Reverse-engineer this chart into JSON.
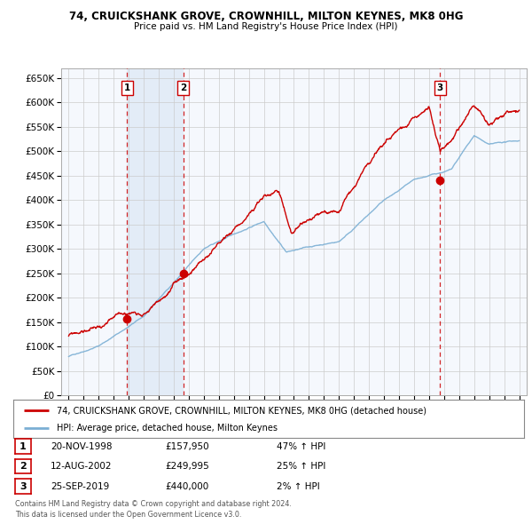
{
  "title": "74, CRUICKSHANK GROVE, CROWNHILL, MILTON KEYNES, MK8 0HG",
  "subtitle": "Price paid vs. HM Land Registry's House Price Index (HPI)",
  "legend_line1": "74, CRUICKSHANK GROVE, CROWNHILL, MILTON KEYNES, MK8 0HG (detached house)",
  "legend_line2": "HPI: Average price, detached house, Milton Keynes",
  "transactions": [
    {
      "num": 1,
      "date": "20-NOV-1998",
      "price": "£157,950",
      "change": "47% ↑ HPI",
      "year": 1998.88,
      "value": 157950
    },
    {
      "num": 2,
      "date": "12-AUG-2002",
      "price": "£249,995",
      "change": "25% ↑ HPI",
      "year": 2002.62,
      "value": 249995
    },
    {
      "num": 3,
      "date": "25-SEP-2019",
      "price": "£440,000",
      "change": "2% ↑ HPI",
      "year": 2019.73,
      "value": 440000
    }
  ],
  "vline_years": [
    1998.88,
    2002.62,
    2019.73
  ],
  "shade_x1": 1998.88,
  "shade_x2": 2002.62,
  "footnote1": "Contains HM Land Registry data © Crown copyright and database right 2024.",
  "footnote2": "This data is licensed under the Open Government Licence v3.0.",
  "hpi_color": "#7bafd4",
  "price_color": "#cc0000",
  "background_color": "#ffffff",
  "chart_bg": "#f5f8fd",
  "grid_color": "#cccccc",
  "vline_color": "#cc0000",
  "shade_color": "#dce8f5",
  "ylim": [
    0,
    670000
  ],
  "yticks": [
    0,
    50000,
    100000,
    150000,
    200000,
    250000,
    300000,
    350000,
    400000,
    450000,
    500000,
    550000,
    600000,
    650000
  ],
  "xlim_start": 1994.5,
  "xlim_end": 2025.5
}
